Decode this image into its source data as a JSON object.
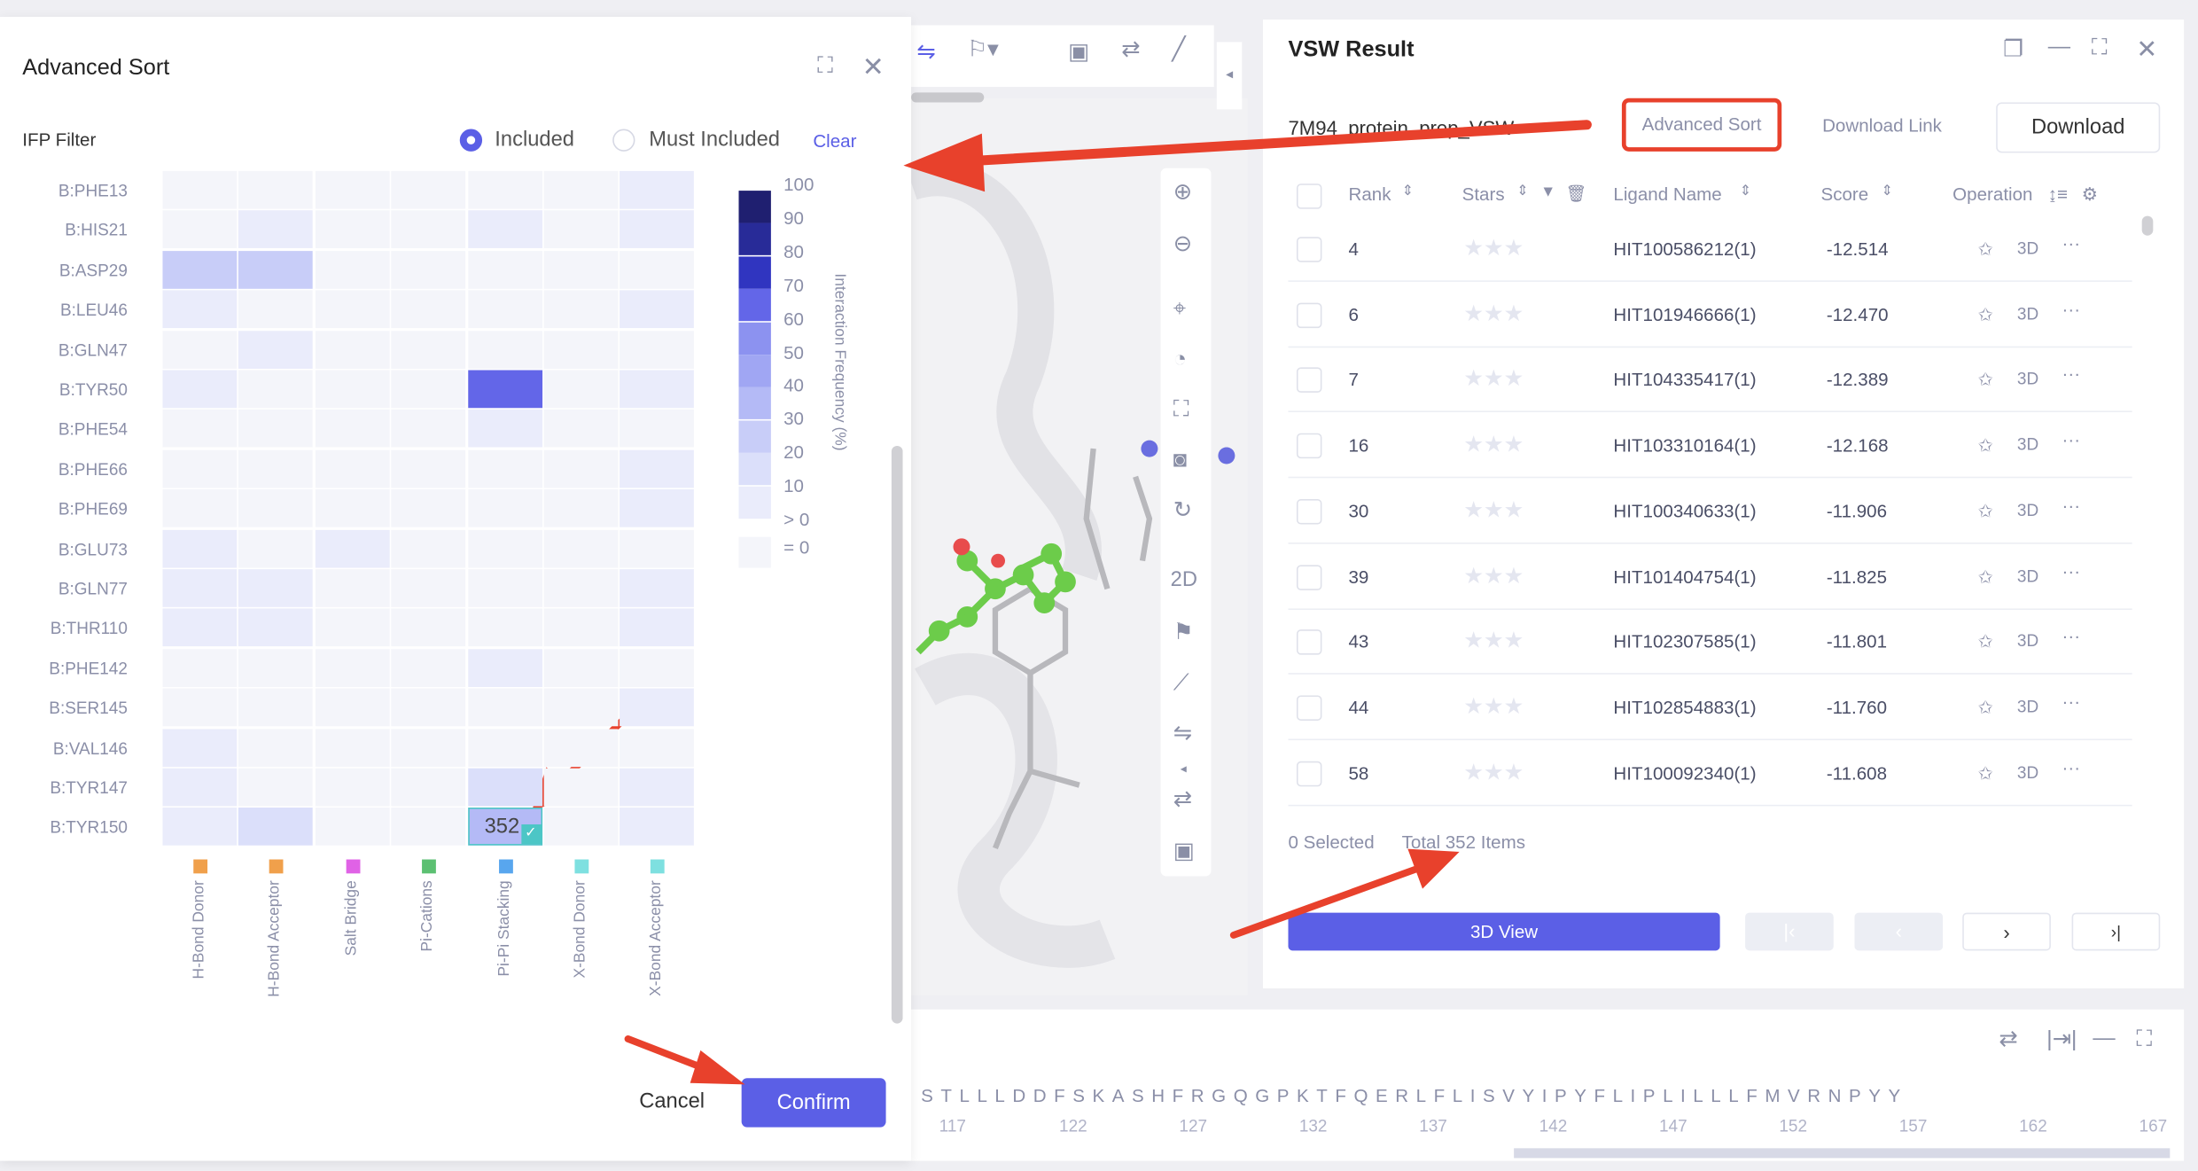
{
  "dialog": {
    "title": "Advanced Sort",
    "filter_label": "IFP Filter",
    "radio_included": "Included",
    "radio_must_included": "Must Included",
    "selected_mode": "Included",
    "clear_label": "Clear",
    "cancel_label": "Cancel",
    "confirm_label": "Confirm",
    "accent_color": "#5b5fe6"
  },
  "heatmap": {
    "rows": [
      "B:PHE13",
      "B:HIS21",
      "B:ASP29",
      "B:LEU46",
      "B:GLN47",
      "B:TYR50",
      "B:PHE54",
      "B:PHE66",
      "B:PHE69",
      "B:GLU73",
      "B:GLN77",
      "B:THR110",
      "B:PHE142",
      "B:SER145",
      "B:VAL146",
      "B:TYR147",
      "B:TYR150"
    ],
    "columns": [
      {
        "label": "H-Bond Donor",
        "color": "#f0a04b"
      },
      {
        "label": "H-Bond Acceptor",
        "color": "#f0a04b"
      },
      {
        "label": "Salt Bridge",
        "color": "#e062e6"
      },
      {
        "label": "Pi-Cations",
        "color": "#5cc072"
      },
      {
        "label": "Pi-Pi Stacking",
        "color": "#58a6ee"
      },
      {
        "label": "X-Bond Donor",
        "color": "#7ee0e0"
      },
      {
        "label": "X-Bond Acceptor",
        "color": "#7ee0e0"
      }
    ],
    "levels_note_values": "0 means =0, 1 means >0, otherwise lower bound of bin (%)",
    "values": [
      [
        0,
        0,
        0,
        0,
        0,
        0,
        1
      ],
      [
        0,
        1,
        0,
        0,
        1,
        0,
        1
      ],
      [
        20,
        20,
        0,
        0,
        0,
        0,
        0
      ],
      [
        1,
        0,
        0,
        0,
        0,
        0,
        1
      ],
      [
        0,
        1,
        0,
        0,
        0,
        0,
        0
      ],
      [
        1,
        0,
        0,
        0,
        60,
        0,
        1
      ],
      [
        0,
        0,
        0,
        0,
        1,
        0,
        0
      ],
      [
        0,
        0,
        0,
        0,
        0,
        0,
        1
      ],
      [
        0,
        0,
        0,
        0,
        0,
        0,
        1
      ],
      [
        1,
        0,
        1,
        0,
        0,
        0,
        0
      ],
      [
        1,
        1,
        0,
        0,
        0,
        0,
        1
      ],
      [
        1,
        1,
        0,
        0,
        0,
        0,
        1
      ],
      [
        0,
        0,
        0,
        0,
        1,
        0,
        0
      ],
      [
        0,
        0,
        0,
        0,
        0,
        0,
        1
      ],
      [
        1,
        0,
        0,
        0,
        0,
        0,
        0
      ],
      [
        1,
        0,
        0,
        0,
        10,
        0,
        1
      ],
      [
        1,
        10,
        0,
        0,
        30,
        0,
        1
      ]
    ],
    "selected_cell": {
      "row": "B:TYR150",
      "column": "Pi-Pi Stacking",
      "count": "352"
    },
    "legend": {
      "title": "Interaction Frequency (%)",
      "labels": [
        "100",
        "90",
        "80",
        "70",
        "60",
        "50",
        "40",
        "30",
        "20",
        "10",
        "> 0",
        "= 0"
      ],
      "colors": [
        "#1f1f70",
        "#282b98",
        "#3035c0",
        "#6366e8",
        "#8c92f0",
        "#a0a6f3",
        "#b4baf6",
        "#c8cdf8",
        "#dbdffa",
        "#eaecfb",
        "#f4f5fa"
      ]
    }
  },
  "viewer": {
    "side_label_2d": "2D"
  },
  "result": {
    "title": "VSW Result",
    "job_name": "7M94_protein_prep_VSW",
    "advanced_sort_label": "Advanced Sort",
    "download_link_label": "Download Link",
    "download_label": "Download",
    "columns": [
      "Rank",
      "Stars",
      "Ligand Name",
      "Score",
      "Operation"
    ],
    "rows": [
      {
        "rank": "4",
        "ligand": "HIT100586212(1)",
        "score": "-12.514"
      },
      {
        "rank": "6",
        "ligand": "HIT101946666(1)",
        "score": "-12.470"
      },
      {
        "rank": "7",
        "ligand": "HIT104335417(1)",
        "score": "-12.389"
      },
      {
        "rank": "16",
        "ligand": "HIT103310164(1)",
        "score": "-12.168"
      },
      {
        "rank": "30",
        "ligand": "HIT100340633(1)",
        "score": "-11.906"
      },
      {
        "rank": "39",
        "ligand": "HIT101404754(1)",
        "score": "-11.825"
      },
      {
        "rank": "43",
        "ligand": "HIT102307585(1)",
        "score": "-11.801"
      },
      {
        "rank": "44",
        "ligand": "HIT102854883(1)",
        "score": "-11.760"
      },
      {
        "rank": "58",
        "ligand": "HIT100092340(1)",
        "score": "-11.608"
      }
    ],
    "op_3d": "3D",
    "op_more": "···",
    "selected_text": "0 Selected",
    "total_text": "Total 352 Items",
    "view3d_label": "3D View",
    "page_next": "›",
    "page_last": "›|",
    "page_prev": "‹",
    "page_first": "|‹"
  },
  "sequence": {
    "residues": "STLLLDDFSKASHFRGQGPKTFQERLFLISVYIPYFLIPLILLLFMVRNPYY",
    "ticks": [
      "117",
      "122",
      "127",
      "132",
      "137",
      "142",
      "147",
      "152",
      "157",
      "162",
      "167"
    ]
  }
}
